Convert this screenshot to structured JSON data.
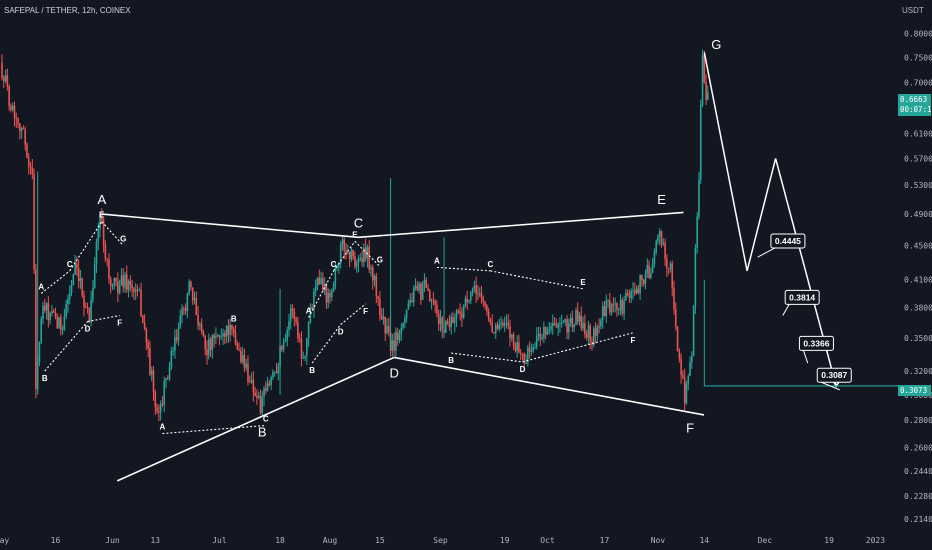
{
  "header": {
    "symbol": "SAFEPAL / TETHER, 12h, COINEX",
    "currency": "USDT"
  },
  "price_badge": {
    "value": "0.6663",
    "countdown": "00:07:16",
    "color": "#26a69a"
  },
  "target_badge": {
    "value": "0.3073",
    "color": "#26a69a"
  },
  "colors": {
    "up": "#26a69a",
    "down": "#ef5350",
    "background": "#131722",
    "pattern": "#ffffff"
  },
  "chart_data": {
    "type": "candlestick",
    "title": "",
    "xlabel": "",
    "ylabel": "",
    "ylim": [
      0.205,
      0.83
    ],
    "y_scale": "log",
    "grid": false,
    "y_ticks": [
      "0.8000",
      "0.7500",
      "0.7000",
      "0.6100",
      "0.5700",
      "0.5300",
      "0.4900",
      "0.4500",
      "0.4100",
      "0.3800",
      "0.3500",
      "0.3200",
      "0.3000",
      "0.2800",
      "0.2600",
      "0.2440",
      "0.2280",
      "0.2140"
    ],
    "x_ticks": [
      "May",
      "16",
      "Jun",
      "13",
      "Jul",
      "18",
      "Aug",
      "15",
      "Sep",
      "19",
      "Oct",
      "17",
      "Nov",
      "14",
      "Dec",
      "19",
      "2023"
    ],
    "price_path": [
      {
        "x": "2022-05-01",
        "y": 0.74
      },
      {
        "x": "2022-05-04",
        "y": 0.66
      },
      {
        "x": "2022-05-07",
        "y": 0.62
      },
      {
        "x": "2022-05-10",
        "y": 0.54
      },
      {
        "x": "2022-05-11",
        "y": 0.31
      },
      {
        "x": "2022-05-13",
        "y": 0.38
      },
      {
        "x": "2022-05-18",
        "y": 0.36
      },
      {
        "x": "2022-05-22",
        "y": 0.42
      },
      {
        "x": "2022-05-26",
        "y": 0.37
      },
      {
        "x": "2022-05-29",
        "y": 0.49
      },
      {
        "x": "2022-06-01",
        "y": 0.4
      },
      {
        "x": "2022-06-05",
        "y": 0.41
      },
      {
        "x": "2022-06-09",
        "y": 0.39
      },
      {
        "x": "2022-06-14",
        "y": 0.28
      },
      {
        "x": "2022-06-18",
        "y": 0.33
      },
      {
        "x": "2022-06-23",
        "y": 0.4
      },
      {
        "x": "2022-06-28",
        "y": 0.34
      },
      {
        "x": "2022-07-04",
        "y": 0.36
      },
      {
        "x": "2022-07-08",
        "y": 0.33
      },
      {
        "x": "2022-07-13",
        "y": 0.29
      },
      {
        "x": "2022-07-18",
        "y": 0.33
      },
      {
        "x": "2022-07-22",
        "y": 0.38
      },
      {
        "x": "2022-07-25",
        "y": 0.33
      },
      {
        "x": "2022-07-29",
        "y": 0.42
      },
      {
        "x": "2022-08-01",
        "y": 0.39
      },
      {
        "x": "2022-08-05",
        "y": 0.45
      },
      {
        "x": "2022-08-09",
        "y": 0.43
      },
      {
        "x": "2022-08-12",
        "y": 0.44
      },
      {
        "x": "2022-08-16",
        "y": 0.37
      },
      {
        "x": "2022-08-19",
        "y": 0.34
      },
      {
        "x": "2022-08-24",
        "y": 0.39
      },
      {
        "x": "2022-08-28",
        "y": 0.4
      },
      {
        "x": "2022-09-02",
        "y": 0.36
      },
      {
        "x": "2022-09-08",
        "y": 0.38
      },
      {
        "x": "2022-09-12",
        "y": 0.4
      },
      {
        "x": "2022-09-16",
        "y": 0.36
      },
      {
        "x": "2022-09-20",
        "y": 0.36
      },
      {
        "x": "2022-09-25",
        "y": 0.33
      },
      {
        "x": "2022-10-01",
        "y": 0.36
      },
      {
        "x": "2022-10-06",
        "y": 0.36
      },
      {
        "x": "2022-10-10",
        "y": 0.37
      },
      {
        "x": "2022-10-14",
        "y": 0.35
      },
      {
        "x": "2022-10-18",
        "y": 0.38
      },
      {
        "x": "2022-10-22",
        "y": 0.38
      },
      {
        "x": "2022-10-26",
        "y": 0.4
      },
      {
        "x": "2022-10-30",
        "y": 0.42
      },
      {
        "x": "2022-11-02",
        "y": 0.46
      },
      {
        "x": "2022-11-05",
        "y": 0.42
      },
      {
        "x": "2022-11-07",
        "y": 0.34
      },
      {
        "x": "2022-11-09",
        "y": 0.3
      },
      {
        "x": "2022-11-11",
        "y": 0.33
      },
      {
        "x": "2022-11-13",
        "y": 0.55
      },
      {
        "x": "2022-11-14",
        "y": 0.76
      },
      {
        "x": "2022-11-15",
        "y": 0.67
      }
    ],
    "wave_patterns": [
      {
        "name": "macro-triangle",
        "points": [
          {
            "label": "A",
            "x": "2022-05-29",
            "y": 0.49
          },
          {
            "label": "B",
            "x": "2022-07-13",
            "y": 0.283
          },
          {
            "label": "C",
            "x": "2022-08-09",
            "y": 0.46
          },
          {
            "label": "D",
            "x": "2022-08-19",
            "y": 0.332
          },
          {
            "label": "E",
            "x": "2022-11-02",
            "y": 0.49
          },
          {
            "label": "F",
            "x": "2022-11-10",
            "y": 0.286
          },
          {
            "label": "G",
            "x": "2022-11-14",
            "y": 0.78
          }
        ]
      },
      {
        "name": "sub-pattern-1",
        "points": [
          {
            "label": "A",
            "x": "2022-05-12",
            "y": 0.395
          },
          {
            "label": "B",
            "x": "2022-05-13",
            "y": 0.32
          },
          {
            "label": "C",
            "x": "2022-05-20",
            "y": 0.42
          },
          {
            "label": "D",
            "x": "2022-05-25",
            "y": 0.366
          },
          {
            "label": "E",
            "x": "2022-05-29",
            "y": 0.48
          },
          {
            "label": "F",
            "x": "2022-06-03",
            "y": 0.372
          },
          {
            "label": "G",
            "x": "2022-06-04",
            "y": 0.45
          }
        ]
      },
      {
        "name": "sub-pattern-2",
        "points": [
          {
            "label": "A",
            "x": "2022-06-15",
            "y": 0.27
          },
          {
            "label": "B",
            "x": "2022-07-05",
            "y": 0.376
          },
          {
            "label": "C",
            "x": "2022-07-14",
            "y": 0.276
          }
        ]
      },
      {
        "name": "sub-pattern-3",
        "points": [
          {
            "label": "A",
            "x": "2022-07-26",
            "y": 0.37
          },
          {
            "label": "B",
            "x": "2022-07-27",
            "y": 0.327
          },
          {
            "label": "C",
            "x": "2022-08-02",
            "y": 0.42
          },
          {
            "label": "D",
            "x": "2022-08-04",
            "y": 0.363
          },
          {
            "label": "E",
            "x": "2022-08-08",
            "y": 0.455
          },
          {
            "label": "F",
            "x": "2022-08-11",
            "y": 0.384
          },
          {
            "label": "G",
            "x": "2022-08-15",
            "y": 0.425
          }
        ]
      },
      {
        "name": "sub-pattern-4",
        "points": [
          {
            "label": "A",
            "x": "2022-08-31",
            "y": 0.424
          },
          {
            "label": "B",
            "x": "2022-09-04",
            "y": 0.336
          },
          {
            "label": "C",
            "x": "2022-09-15",
            "y": 0.42
          },
          {
            "label": "D",
            "x": "2022-09-24",
            "y": 0.328
          },
          {
            "label": "E",
            "x": "2022-10-11",
            "y": 0.4
          },
          {
            "label": "F",
            "x": "2022-10-25",
            "y": 0.355
          }
        ]
      }
    ],
    "projection": [
      {
        "x": "2022-11-14",
        "y": 0.76
      },
      {
        "x": "2022-11-26",
        "y": 0.42
      },
      {
        "x": "2022-12-04",
        "y": 0.57
      },
      {
        "x": "2022-12-21",
        "y": 0.307
      }
    ],
    "target_labels": [
      "0.4445",
      "0.3814",
      "0.3366",
      "0.3087"
    ],
    "target_line": 0.3073
  }
}
